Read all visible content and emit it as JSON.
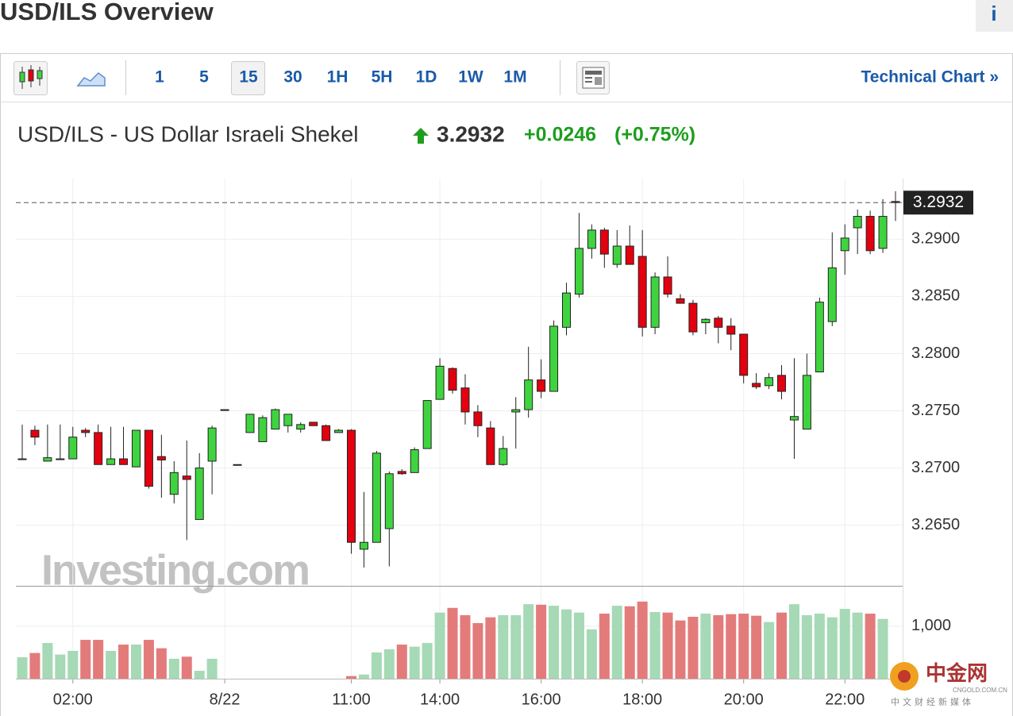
{
  "header": {
    "title": "USD/ILS Overview",
    "info": "i"
  },
  "toolbar": {
    "intervals": [
      "1",
      "5",
      "15",
      "30",
      "1H",
      "5H",
      "1D",
      "1W",
      "1M"
    ],
    "selected": "15",
    "link": "Technical Chart »"
  },
  "branding": {
    "watermark": "Investing.com",
    "logo": "中金网",
    "logo_site": "CNGOLD.COM.CN",
    "logo_tagline": "中文财经新媒体"
  },
  "chart_data": {
    "type": "candlestick",
    "title": "USD/ILS - US Dollar Israeli Shekel",
    "quote": {
      "last": 3.2932,
      "change": "+0.0246",
      "change_pct": "(+0.75%)"
    },
    "categories": [
      null,
      null,
      null,
      null,
      "02:00",
      null,
      null,
      null,
      null,
      null,
      null,
      null,
      null,
      null,
      null,
      null,
      "8/22",
      null,
      null,
      null,
      null,
      null,
      null,
      null,
      null,
      null,
      "11:00",
      null,
      null,
      null,
      null,
      null,
      null,
      "14:00",
      null,
      null,
      null,
      null,
      null,
      null,
      null,
      "16:00",
      null,
      null,
      null,
      null,
      null,
      null,
      null,
      "18:00",
      null,
      null,
      null,
      null,
      null,
      null,
      null,
      "20:00",
      null,
      null,
      null,
      null,
      null,
      null,
      null,
      "22:00",
      null,
      null,
      null,
      null
    ],
    "open": [
      3.2708,
      3.2733,
      3.2706,
      3.2708,
      3.2708,
      3.2733,
      3.2731,
      3.2703,
      3.2708,
      3.2701,
      3.2733,
      3.271,
      3.2677,
      3.2693,
      3.2655,
      3.2706,
      3.2751,
      3.2703,
      3.2731,
      3.2723,
      3.2734,
      3.2737,
      3.2734,
      3.274,
      3.2737,
      3.2731,
      3.2733,
      3.2629,
      3.2635,
      3.2647,
      3.2697,
      3.2696,
      3.2717,
      3.276,
      3.2787,
      3.277,
      3.2749,
      3.2735,
      3.2703,
      3.2749,
      3.2751,
      3.2777,
      3.2767,
      3.2823,
      3.2852,
      3.2892,
      3.2908,
      3.2878,
      3.2894,
      3.2885,
      3.2823,
      3.2867,
      3.2848,
      3.2844,
      3.2827,
      3.2831,
      3.2824,
      3.2817,
      3.2774,
      3.2772,
      3.2781,
      3.2742,
      3.2734,
      3.2784,
      3.2828,
      3.289,
      3.291,
      3.292,
      3.2892,
      3.2933
    ],
    "high": [
      3.2738,
      3.2737,
      3.2738,
      3.2738,
      3.2736,
      3.2735,
      3.2738,
      3.2736,
      3.2736,
      3.2733,
      3.2733,
      3.2729,
      3.2706,
      3.2724,
      3.2713,
      3.2737,
      3.2751,
      3.2703,
      3.2747,
      3.2746,
      3.2752,
      3.2747,
      3.274,
      3.274,
      3.2738,
      3.2734,
      3.2734,
      3.2679,
      3.2715,
      3.2697,
      3.2699,
      3.2718,
      3.2759,
      3.2796,
      3.2788,
      3.2782,
      3.2755,
      3.2741,
      3.2728,
      3.2762,
      3.2806,
      3.2795,
      3.2829,
      3.2862,
      3.2923,
      3.2913,
      3.291,
      3.2908,
      3.2912,
      3.2908,
      3.2871,
      3.2885,
      3.2852,
      3.2847,
      3.2831,
      3.2833,
      3.2831,
      3.2817,
      3.2783,
      3.2783,
      3.279,
      3.2796,
      3.28,
      3.2849,
      3.2906,
      3.2913,
      3.2926,
      3.2925,
      3.2935,
      3.2942
    ],
    "low": [
      3.2707,
      3.272,
      3.2706,
      3.2708,
      3.2708,
      3.2727,
      3.2703,
      3.2703,
      3.2703,
      3.2701,
      3.2682,
      3.2674,
      3.2669,
      3.2637,
      3.2655,
      3.2677,
      3.2751,
      3.2703,
      3.2731,
      3.2723,
      3.2734,
      3.2731,
      3.2731,
      3.2737,
      3.2724,
      3.2731,
      3.2625,
      3.2613,
      3.2635,
      3.2614,
      3.2694,
      3.2696,
      3.2717,
      3.276,
      3.2765,
      3.2738,
      3.2727,
      3.2703,
      3.2702,
      3.2717,
      3.2744,
      3.2761,
      3.2767,
      3.2816,
      3.2849,
      3.2883,
      3.2875,
      3.2875,
      3.2878,
      3.2815,
      3.2817,
      3.2849,
      3.2844,
      3.2816,
      3.2817,
      3.2809,
      3.2803,
      3.2774,
      3.2769,
      3.2769,
      3.276,
      3.2708,
      3.2734,
      3.2784,
      3.2824,
      3.2869,
      3.2887,
      3.2887,
      3.2888,
      3.2916
    ],
    "close": [
      3.2708,
      3.2727,
      3.2709,
      3.2708,
      3.2727,
      3.2731,
      3.2703,
      3.2708,
      3.2703,
      3.2733,
      3.2684,
      3.2707,
      3.2696,
      3.269,
      3.27,
      3.2735,
      3.2751,
      3.2703,
      3.2747,
      3.2744,
      3.2751,
      3.2747,
      3.2738,
      3.2737,
      3.2724,
      3.2733,
      3.2635,
      3.2635,
      3.2713,
      3.2695,
      3.2695,
      3.2716,
      3.2759,
      3.2789,
      3.2768,
      3.2749,
      3.2737,
      3.2703,
      3.2717,
      3.2751,
      3.2777,
      3.2767,
      3.2824,
      3.2853,
      3.2892,
      3.2908,
      3.2887,
      3.2894,
      3.2878,
      3.2823,
      3.2867,
      3.2852,
      3.2844,
      3.2819,
      3.283,
      3.2823,
      3.2817,
      3.2781,
      3.2771,
      3.2779,
      3.2767,
      3.2745,
      3.2781,
      3.2845,
      3.2875,
      3.2901,
      3.292,
      3.289,
      3.292,
      3.2932
    ],
    "volume": [
      410,
      490,
      680,
      460,
      530,
      740,
      740,
      530,
      650,
      650,
      740,
      580,
      380,
      420,
      150,
      380,
      null,
      null,
      null,
      null,
      null,
      null,
      null,
      null,
      null,
      null,
      50,
      80,
      500,
      560,
      650,
      610,
      680,
      1260,
      1350,
      1210,
      1060,
      1170,
      1210,
      1210,
      1420,
      1410,
      1390,
      1320,
      1260,
      940,
      1240,
      1390,
      1380,
      1470,
      1270,
      1260,
      1110,
      1180,
      1240,
      1210,
      1230,
      1240,
      1200,
      1080,
      1260,
      1420,
      1210,
      1240,
      1170,
      1330,
      1260,
      1240,
      1140,
      null
    ],
    "up_color": "#3fd43f",
    "down_color": "#e3000f",
    "volume_up_color": "#a6d9b5",
    "volume_down_color": "#e37b7b",
    "ylim": [
      3.2597,
      3.2953
    ],
    "yticks": [
      {
        "value": 3.265,
        "label": "3.2650"
      },
      {
        "value": 3.27,
        "label": "3.2700"
      },
      {
        "value": 3.275,
        "label": "3.2750"
      },
      {
        "value": 3.28,
        "label": "3.2800"
      },
      {
        "value": 3.285,
        "label": "3.2850"
      },
      {
        "value": 3.29,
        "label": "3.2900"
      }
    ],
    "volume_ylim": [
      0,
      1770
    ],
    "volume_ticks": [
      {
        "value": 1000,
        "label": "1,000"
      }
    ],
    "grid": true
  }
}
